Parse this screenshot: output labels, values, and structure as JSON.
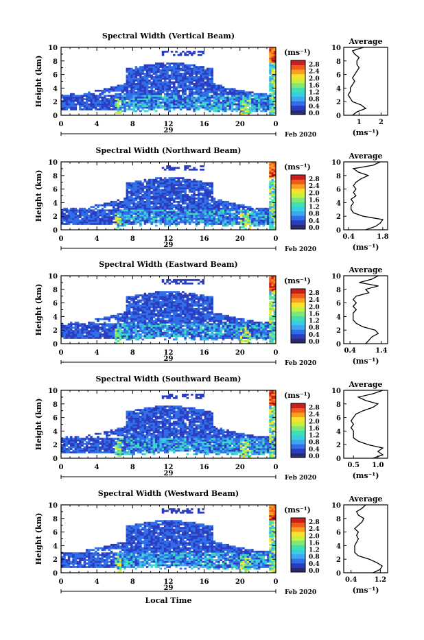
{
  "figure": {
    "x_title": "Local Time",
    "date_suffix": "Feb 2020",
    "day_label": "29",
    "unit_label": "(ms⁻¹)"
  },
  "colorbar": {
    "ticks": [
      "2.8",
      "2.4",
      "2.0",
      "1.6",
      "1.2",
      "0.8",
      "0.4",
      "0.0"
    ],
    "colors": [
      "#2a2a6e",
      "#2b3cc0",
      "#2f6fe8",
      "#3fa6f2",
      "#36d0e0",
      "#42e0b0",
      "#7fe878",
      "#c8f040",
      "#fae22c",
      "#f9a020",
      "#f25a1c",
      "#c81e1e"
    ]
  },
  "chart_data": [
    {
      "type": "heatmap",
      "title": "Spectral Width (Vertical Beam)",
      "xlabel": "",
      "ylabel": "Height (km)",
      "xticks": [
        "0",
        "4",
        "8",
        "12",
        "16",
        "20",
        "0"
      ],
      "yticks": [
        "0",
        "2",
        "4",
        "6",
        "8",
        "10"
      ],
      "xlim": [
        0,
        24
      ],
      "ylim": [
        0,
        10
      ],
      "colorbar_label": "(ms⁻¹)",
      "colorbar_range": [
        0.0,
        2.8
      ],
      "profile": {
        "title": "Average",
        "xlabel": "(ms⁻¹)",
        "xticks": [
          "1",
          "2"
        ],
        "xlim": [
          0.3,
          2.3
        ],
        "heights": [
          0,
          0.5,
          1,
          1.5,
          2,
          2.5,
          3,
          3.5,
          4,
          4.5,
          5,
          5.5,
          6,
          6.5,
          7,
          7.5,
          8,
          8.5,
          9,
          9.5,
          10
        ],
        "values": [
          0.7,
          0.9,
          1.3,
          1.1,
          0.7,
          0.6,
          0.5,
          0.6,
          0.6,
          0.7,
          0.8,
          0.7,
          0.8,
          0.9,
          1.0,
          0.9,
          0.9,
          1.0,
          0.8,
          0.7,
          1.2
        ]
      }
    },
    {
      "type": "heatmap",
      "title": "Spectral Width (Northward Beam)",
      "xlabel": "",
      "ylabel": "Height (km)",
      "xticks": [
        "0",
        "4",
        "8",
        "12",
        "16",
        "20",
        "0"
      ],
      "yticks": [
        "0",
        "2",
        "4",
        "6",
        "8",
        "10"
      ],
      "xlim": [
        0,
        24
      ],
      "ylim": [
        0,
        10
      ],
      "colorbar_label": "(ms⁻¹)",
      "colorbar_range": [
        0.0,
        2.8
      ],
      "profile": {
        "title": "Average",
        "xlabel": "(ms⁻¹)",
        "xticks": [
          "0.4",
          "1.8"
        ],
        "xlim": [
          0.2,
          2.0
        ],
        "heights": [
          0,
          0.5,
          1,
          1.5,
          2,
          2.5,
          3,
          3.5,
          4,
          4.5,
          5,
          5.5,
          6,
          6.5,
          7,
          7.5,
          8,
          8.5,
          9,
          9.5,
          10
        ],
        "values": [
          1.1,
          1.5,
          1.7,
          1.8,
          1.0,
          0.6,
          0.5,
          0.5,
          0.6,
          0.5,
          0.7,
          0.6,
          0.7,
          0.6,
          0.7,
          0.9,
          1.2,
          0.8,
          0.6,
          1.4,
          1.7
        ]
      }
    },
    {
      "type": "heatmap",
      "title": "Spectral Width (Eastward Beam)",
      "xlabel": "",
      "ylabel": "Height (km)",
      "xticks": [
        "0",
        "4",
        "8",
        "12",
        "16",
        "20",
        "0"
      ],
      "yticks": [
        "0",
        "2",
        "4",
        "6",
        "8",
        "10"
      ],
      "xlim": [
        0,
        24
      ],
      "ylim": [
        0,
        10
      ],
      "colorbar_label": "(ms⁻¹)",
      "colorbar_range": [
        0.0,
        2.8
      ],
      "profile": {
        "title": "Average",
        "xlabel": "(ms⁻¹)",
        "xticks": [
          "0.4",
          "1.4"
        ],
        "xlim": [
          0.2,
          1.6
        ],
        "heights": [
          0,
          0.5,
          1,
          1.5,
          2,
          2.5,
          3,
          3.5,
          4,
          4.5,
          5,
          5.5,
          6,
          6.5,
          7,
          7.5,
          8,
          8.5,
          9,
          9.5,
          10
        ],
        "values": [
          0.9,
          1.0,
          1.1,
          1.3,
          1.2,
          0.8,
          0.6,
          0.5,
          0.5,
          0.5,
          0.6,
          0.5,
          0.6,
          0.5,
          0.6,
          1.0,
          0.9,
          1.3,
          0.7,
          1.1,
          1.3
        ]
      }
    },
    {
      "type": "heatmap",
      "title": "Spectral Width (Southward Beam)",
      "xlabel": "",
      "ylabel": "Height (km)",
      "xticks": [
        "0",
        "4",
        "8",
        "12",
        "16",
        "20",
        "0"
      ],
      "yticks": [
        "0",
        "2",
        "4",
        "6",
        "8",
        "10"
      ],
      "xlim": [
        0,
        24
      ],
      "ylim": [
        0,
        10
      ],
      "colorbar_label": "(ms⁻¹)",
      "colorbar_range": [
        0.0,
        2.8
      ],
      "profile": {
        "title": "Average",
        "xlabel": "(ms⁻¹)",
        "xticks": [
          "0.5",
          "1.0"
        ],
        "xlim": [
          0.3,
          1.2
        ],
        "heights": [
          0,
          0.5,
          1,
          1.5,
          2,
          2.5,
          3,
          3.5,
          4,
          4.5,
          5,
          5.5,
          6,
          6.5,
          7,
          7.5,
          8,
          8.5,
          9,
          9.5,
          10
        ],
        "values": [
          0.9,
          1.1,
          1.0,
          1.1,
          0.8,
          0.6,
          0.5,
          0.5,
          0.5,
          0.45,
          0.5,
          0.45,
          0.5,
          0.55,
          0.7,
          0.9,
          1.0,
          0.75,
          0.6,
          0.9,
          1.1
        ]
      }
    },
    {
      "type": "heatmap",
      "title": "Spectral Width (Westward Beam)",
      "xlabel": "",
      "ylabel": "Height (km)",
      "xticks": [
        "0",
        "4",
        "8",
        "12",
        "16",
        "20",
        "0"
      ],
      "yticks": [
        "0",
        "2",
        "4",
        "6",
        "8",
        "10"
      ],
      "xlim": [
        0,
        24
      ],
      "ylim": [
        0,
        10
      ],
      "colorbar_label": "(ms⁻¹)",
      "colorbar_range": [
        0.0,
        2.8
      ],
      "profile": {
        "title": "Average",
        "xlabel": "(ms⁻¹)",
        "xticks": [
          "0.4",
          "1.2"
        ],
        "xlim": [
          0.2,
          1.4
        ],
        "heights": [
          0,
          0.5,
          1,
          1.5,
          2,
          2.5,
          3,
          3.5,
          4,
          4.5,
          5,
          5.5,
          6,
          6.5,
          7,
          7.5,
          8,
          8.5,
          9,
          9.5,
          10
        ],
        "values": [
          1.0,
          1.2,
          1.25,
          1.1,
          0.9,
          0.6,
          0.5,
          0.5,
          0.5,
          0.55,
          0.6,
          0.55,
          0.6,
          0.5,
          0.6,
          0.7,
          0.75,
          0.6,
          0.55,
          0.7,
          0.8
        ]
      }
    }
  ]
}
